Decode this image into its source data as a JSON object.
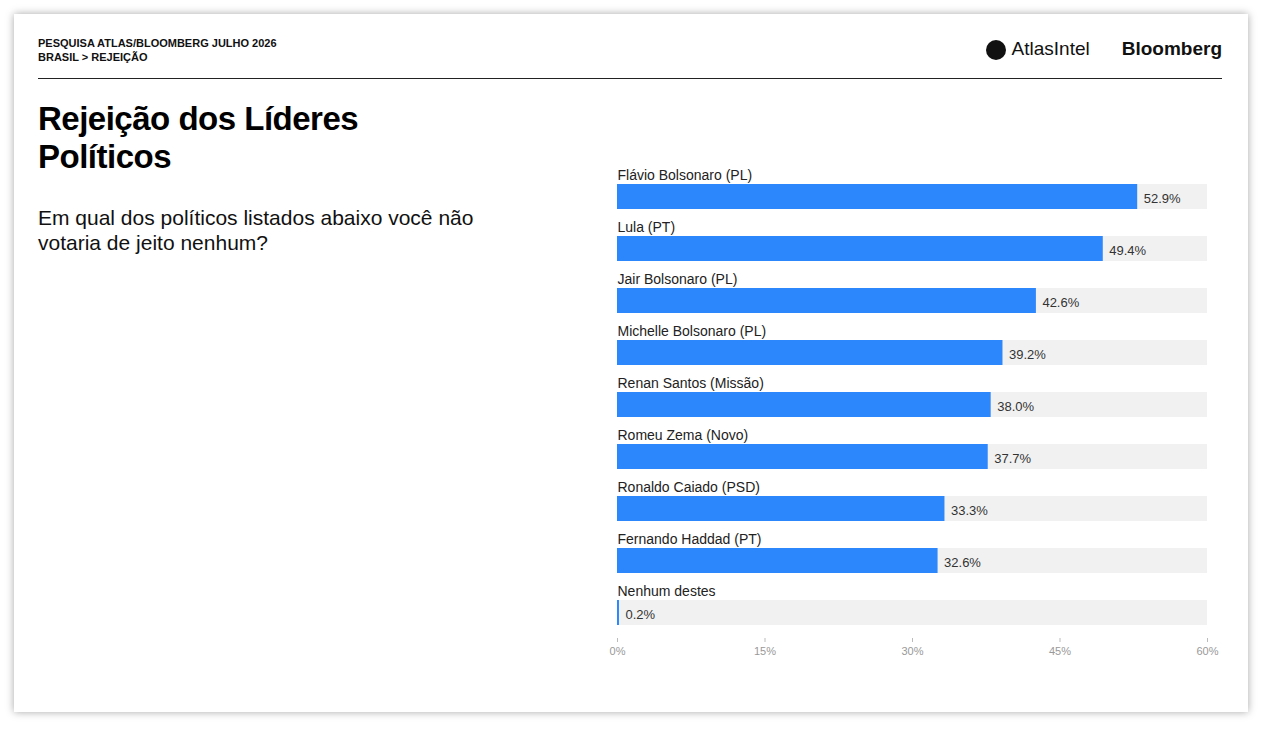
{
  "header": {
    "source": "PESQUISA ATLAS/BLOOMBERG JULHO 2026",
    "breadcrumb": "BRASIL > REJEIÇÃO",
    "logos": [
      "AtlasIntel",
      "Bloomberg"
    ]
  },
  "chart_data": {
    "type": "bar",
    "orientation": "horizontal",
    "title": "Rejeição dos Líderes Políticos",
    "subtitle": "Em qual dos políticos listados abaixo você não votaria de jeito nenhum?",
    "categories": [
      "Flávio Bolsonaro (PL)",
      "Lula (PT)",
      "Jair Bolsonaro (PL)",
      "Michelle Bolsonaro (PL)",
      "Renan Santos (Missão)",
      "Romeu Zema (Novo)",
      "Ronaldo Caiado (PSD)",
      "Fernando Haddad (PT)",
      "Nenhum destes"
    ],
    "values": [
      52.9,
      49.4,
      42.6,
      39.2,
      38.0,
      37.7,
      33.3,
      32.6,
      0.2
    ],
    "value_labels": [
      "52.9%",
      "49.4%",
      "42.6%",
      "39.2%",
      "38.0%",
      "37.7%",
      "33.3%",
      "32.6%",
      "0.2%"
    ],
    "color": "#2b87fb",
    "xlim": [
      0,
      60
    ],
    "xticks": [
      {
        "value": 0,
        "label": "0%"
      },
      {
        "value": 15,
        "label": "15%"
      },
      {
        "value": 30,
        "label": "30%"
      },
      {
        "value": 45,
        "label": "45%"
      },
      {
        "value": 60,
        "label": "60%"
      }
    ],
    "data_labels": true,
    "grid": false,
    "tick_labels": "x"
  }
}
